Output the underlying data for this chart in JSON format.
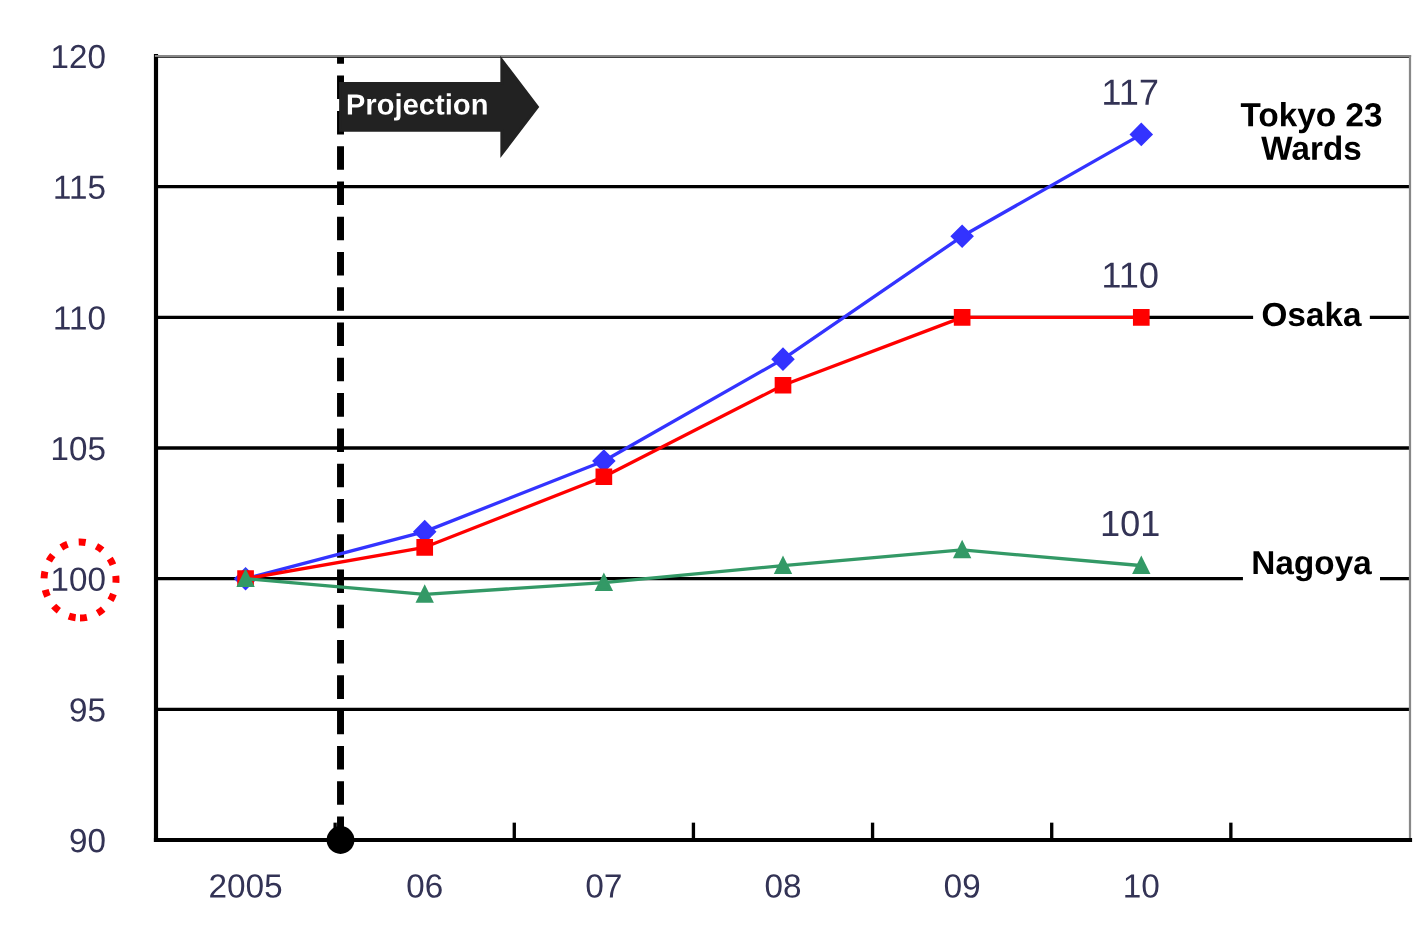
{
  "chart_data": {
    "type": "line",
    "categories": [
      "2005",
      "06",
      "07",
      "08",
      "09",
      "10",
      null
    ],
    "series": [
      {
        "name": "Tokyo 23\nWards",
        "color": "#3333ff",
        "marker": "diamond",
        "values": [
          100,
          101.8,
          104.5,
          108.4,
          113.1,
          117,
          null
        ],
        "value_labels": [
          null,
          null,
          null,
          null,
          null,
          "117",
          null
        ]
      },
      {
        "name": "Osaka",
        "color": "#ff0000",
        "marker": "square",
        "values": [
          100,
          101.2,
          103.9,
          107.4,
          110,
          110,
          null
        ],
        "value_labels": [
          null,
          null,
          null,
          null,
          null,
          "110",
          null
        ]
      },
      {
        "name": "Nagoya",
        "color": "#339966",
        "marker": "triangle",
        "values": [
          100,
          99.4,
          99.85,
          100.5,
          101.1,
          100.5,
          null
        ],
        "value_labels": [
          null,
          null,
          null,
          null,
          null,
          "101",
          null
        ]
      }
    ],
    "ylim": [
      90,
      120
    ],
    "yticks": [
      90,
      95,
      100,
      105,
      110,
      115,
      120
    ],
    "grid": "y",
    "legend": false,
    "annotations": [
      "Projection"
    ]
  }
}
